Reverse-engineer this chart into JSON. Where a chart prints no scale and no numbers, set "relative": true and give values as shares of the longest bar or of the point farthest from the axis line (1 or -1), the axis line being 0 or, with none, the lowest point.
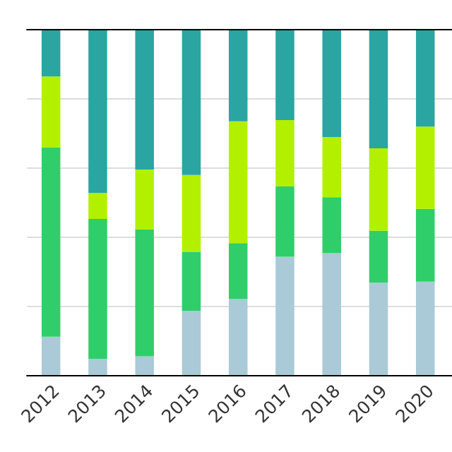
{
  "chart_data": {
    "type": "bar",
    "stacked": true,
    "relative": true,
    "grid": "y",
    "categories": [
      "2012",
      "2013",
      "2014",
      "2015",
      "2016",
      "2017",
      "2018",
      "2019",
      "2020"
    ],
    "series": [
      {
        "color": "#a9cad6",
        "values": [
          0.113,
          0.049,
          0.056,
          0.188,
          0.222,
          0.344,
          0.354,
          0.269,
          0.272
        ]
      },
      {
        "color": "#2fce6a",
        "values": [
          0.547,
          0.404,
          0.367,
          0.17,
          0.161,
          0.203,
          0.162,
          0.15,
          0.21
        ]
      },
      {
        "color": "#b2f000",
        "values": [
          0.205,
          0.075,
          0.173,
          0.222,
          0.352,
          0.192,
          0.174,
          0.238,
          0.238
        ]
      },
      {
        "color": "#2aa5a2",
        "values": [
          0.135,
          0.472,
          0.404,
          0.42,
          0.265,
          0.261,
          0.31,
          0.343,
          0.28
        ]
      }
    ]
  }
}
